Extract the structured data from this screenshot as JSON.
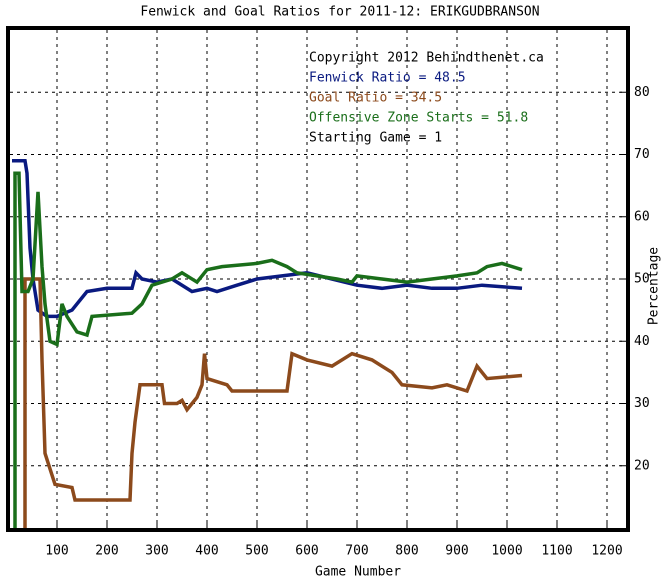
{
  "chart_data": {
    "type": "line",
    "title": "Fenwick and Goal Ratios for 2011-12: ERIKGUDBRANSON",
    "x_label": "Game Number",
    "y_label": "Percentage",
    "annotations": [
      {
        "text": "Copyright 2012 Behindthenet.ca",
        "color": "#000000"
      },
      {
        "text": "Fenwick Ratio = 48.5",
        "color": "#0a1a80"
      },
      {
        "text": "Goal Ratio = 34.5",
        "color": "#8c4a1c"
      },
      {
        "text": "Offensive Zone Starts = 51.8",
        "color": "#1a6e1a"
      },
      {
        "text": "Starting Game = 1",
        "color": "#000000"
      }
    ],
    "xlim": [
      6,
      1238
    ],
    "ylim": [
      10,
      90
    ],
    "xticks": [
      100,
      200,
      300,
      400,
      500,
      600,
      700,
      800,
      900,
      1000,
      1100,
      1200
    ],
    "yticks": [
      20,
      30,
      40,
      50,
      60,
      70,
      80
    ],
    "grid": true,
    "series": [
      {
        "color": "#0a1a80",
        "x": [
          10,
          36,
          40,
          46,
          52,
          62,
          80,
          100,
          130,
          160,
          200,
          250,
          258,
          270,
          300,
          330,
          370,
          400,
          420,
          460,
          500,
          550,
          600,
          650,
          700,
          750,
          800,
          850,
          900,
          950,
          1030
        ],
        "values": [
          69,
          69,
          67,
          55,
          50,
          45,
          44,
          44,
          45,
          48,
          48.5,
          48.5,
          51,
          50,
          49.5,
          50,
          48,
          48.5,
          48,
          49,
          50,
          50.5,
          51,
          50,
          49,
          48.5,
          49,
          48.5,
          48.5,
          49,
          48.5
        ]
      },
      {
        "color": "#8c4a1c",
        "x": [
          36,
          36,
          66,
          70,
          76,
          96,
          130,
          136,
          246,
          250,
          256,
          266,
          310,
          315,
          340,
          350,
          360,
          380,
          390,
          395,
          400,
          440,
          450,
          560,
          570,
          600,
          650,
          690,
          730,
          770,
          790,
          850,
          880,
          920,
          940,
          960,
          1030
        ],
        "values": [
          10,
          50,
          50,
          37,
          22,
          17,
          16.5,
          14.5,
          14.5,
          22,
          27,
          33,
          33,
          30,
          30,
          30.5,
          29,
          31,
          33,
          38,
          34,
          33,
          32,
          32,
          38,
          37,
          36,
          38,
          37,
          35,
          33,
          32.5,
          33,
          32,
          36,
          34,
          34.5
        ]
      },
      {
        "color": "#1a6e1a",
        "x": [
          16,
          16,
          24,
          30,
          42,
          52,
          62,
          70,
          76,
          86,
          100,
          110,
          120,
          140,
          160,
          170,
          250,
          270,
          290,
          330,
          350,
          380,
          400,
          430,
          500,
          530,
          560,
          580,
          620,
          660,
          690,
          700,
          750,
          800,
          850,
          900,
          940,
          960,
          990,
          1030
        ],
        "values": [
          10,
          67,
          67,
          48,
          48,
          50,
          64,
          52,
          46,
          40,
          39.5,
          46,
          44,
          41.5,
          41,
          44,
          44.5,
          46,
          49,
          50,
          51,
          49.5,
          51.5,
          52,
          52.5,
          53,
          52,
          51,
          50.5,
          50,
          49.5,
          50.5,
          50,
          49.5,
          50,
          50.5,
          51,
          52,
          52.5,
          51.5
        ]
      }
    ]
  }
}
